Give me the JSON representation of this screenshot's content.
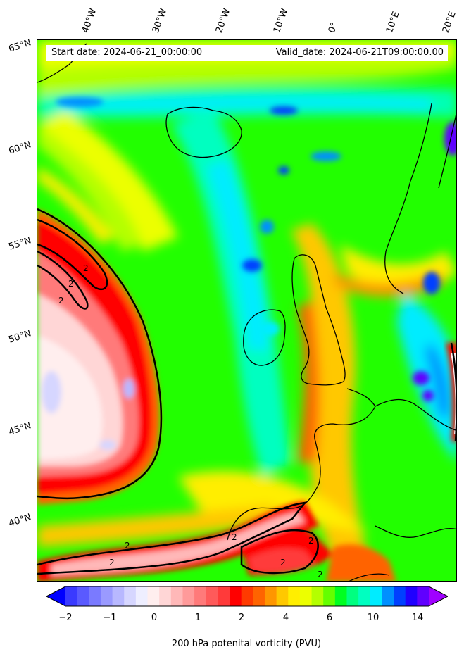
{
  "header": {
    "start_date": "Start date: 2024-06-21_00:00:00",
    "valid_date": "Valid_date: 2024-06-21T09:00:00.00"
  },
  "lon_labels": [
    "40°W",
    "30°W",
    "20°W",
    "10°W",
    "0°",
    "10°E",
    "20°E"
  ],
  "lat_labels": [
    "65°N",
    "60°N",
    "55°N",
    "50°N",
    "45°N",
    "40°N"
  ],
  "contour_label": "2",
  "colorbar": {
    "title": "200 hPa potenital vorticity (PVU)",
    "ticks": [
      "−2",
      "−1",
      "0",
      "1",
      "2",
      "4",
      "6",
      "10",
      "14"
    ],
    "colors": [
      "#0000ff",
      "#3a3aff",
      "#5a5aff",
      "#7a7aff",
      "#9a9aff",
      "#b8b8ff",
      "#d6d6ff",
      "#eeeeff",
      "#ffeeee",
      "#ffd6d6",
      "#ffb8b8",
      "#ff9a9a",
      "#ff7a7a",
      "#ff5a5a",
      "#ff3a3a",
      "#ff0000",
      "#ff3a00",
      "#ff6400",
      "#ff9600",
      "#ffc800",
      "#ffee00",
      "#ecff00",
      "#b4ff00",
      "#64ff00",
      "#00ff20",
      "#00ff80",
      "#00ffc0",
      "#00ecff",
      "#0090ff",
      "#0040ff",
      "#2000ff",
      "#6000ff",
      "#a000ff"
    ]
  }
}
